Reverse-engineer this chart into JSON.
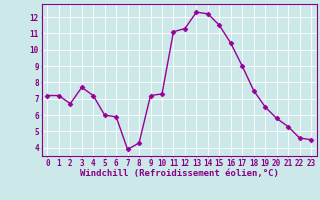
{
  "x": [
    0,
    1,
    2,
    3,
    4,
    5,
    6,
    7,
    8,
    9,
    10,
    11,
    12,
    13,
    14,
    15,
    16,
    17,
    18,
    19,
    20,
    21,
    22,
    23
  ],
  "y": [
    7.2,
    7.2,
    6.7,
    7.7,
    7.2,
    6.0,
    5.9,
    3.9,
    4.3,
    7.2,
    7.3,
    11.1,
    11.3,
    12.3,
    12.2,
    11.5,
    10.4,
    9.0,
    7.5,
    6.5,
    5.8,
    5.3,
    4.6,
    4.5
  ],
  "line_color": "#990099",
  "marker": "D",
  "marker_size": 2.5,
  "bg_color": "#cce8e8",
  "grid_color": "#ffffff",
  "xlabel": "Windchill (Refroidissement éolien,°C)",
  "ylim": [
    3.5,
    12.8
  ],
  "xlim": [
    -0.5,
    23.5
  ],
  "yticks": [
    4,
    5,
    6,
    7,
    8,
    9,
    10,
    11,
    12
  ],
  "xticks": [
    0,
    1,
    2,
    3,
    4,
    5,
    6,
    7,
    8,
    9,
    10,
    11,
    12,
    13,
    14,
    15,
    16,
    17,
    18,
    19,
    20,
    21,
    22,
    23
  ],
  "tick_color": "#880088",
  "xlabel_fontsize": 6.5,
  "tick_fontsize": 5.5,
  "linewidth": 1.0
}
